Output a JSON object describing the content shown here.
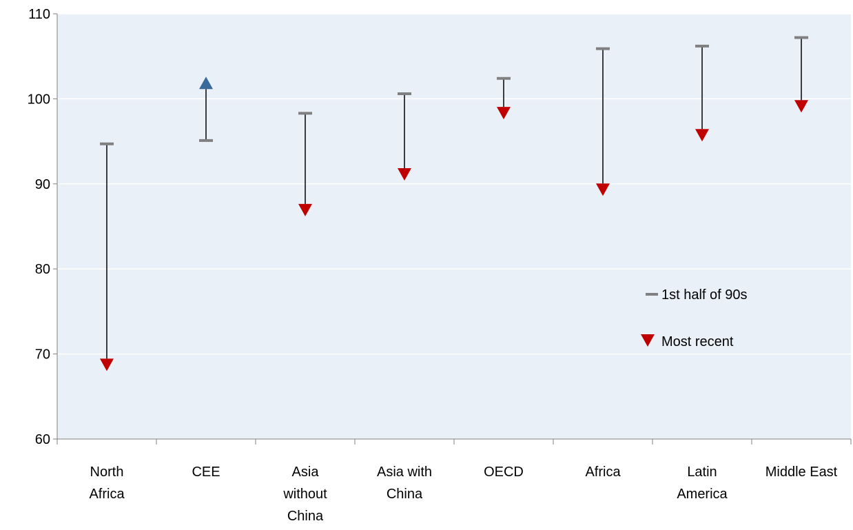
{
  "chart_data": {
    "type": "dumbbell",
    "title": "",
    "xlabel": "",
    "ylabel": "",
    "ylim": [
      60,
      110
    ],
    "yticks": [
      60,
      70,
      80,
      90,
      100,
      110
    ],
    "grid": true,
    "legend_position": "right-middle",
    "categories": [
      [
        "North",
        "Africa"
      ],
      [
        "CEE"
      ],
      [
        "Asia",
        "without",
        "China"
      ],
      [
        "Asia with",
        "China"
      ],
      [
        "OECD"
      ],
      [
        "Africa"
      ],
      [
        "Latin",
        "America"
      ],
      [
        "Middle East"
      ]
    ],
    "series": [
      {
        "name": "1st half of 90s",
        "marker": "dash",
        "color": "#808080",
        "values": [
          94.7,
          95.1,
          98.3,
          100.6,
          102.4,
          105.9,
          106.2,
          107.2
        ]
      },
      {
        "name": "Most recent",
        "marker": "triangle",
        "color": "#c00000",
        "up_color": "#3a6a9c",
        "values": [
          68.8,
          101.8,
          87.0,
          91.2,
          98.4,
          89.4,
          95.8,
          99.2
        ]
      }
    ],
    "colors": {
      "plot_bg": "#eaf0f7",
      "gridline": "#ffffff",
      "connector": "#000000"
    }
  }
}
